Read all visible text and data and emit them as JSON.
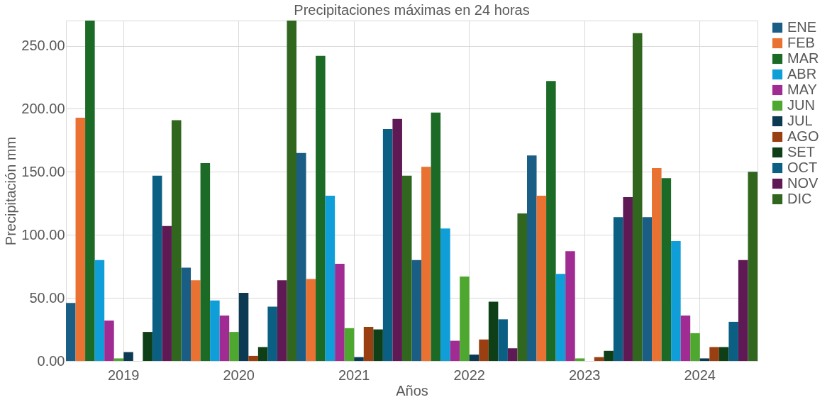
{
  "chart_data": {
    "type": "bar",
    "title": "Precipitaciones máximas  en 24 horas",
    "xlabel": "Años",
    "ylabel": "Precipitación mm",
    "categories": [
      "2019",
      "2020",
      "2021",
      "2022",
      "2023",
      "2024"
    ],
    "series": [
      {
        "name": "ENE",
        "color": "#1a5e85",
        "values": [
          46,
          74,
          165,
          80,
          163,
          114
        ]
      },
      {
        "name": "FEB",
        "color": "#e97132",
        "values": [
          193,
          64,
          65,
          154,
          131,
          153
        ]
      },
      {
        "name": "MAR",
        "color": "#1b6a25",
        "values": [
          270,
          157,
          242,
          197,
          222,
          145
        ]
      },
      {
        "name": "ABR",
        "color": "#109ed8",
        "values": [
          80,
          48,
          131,
          105,
          69,
          95
        ]
      },
      {
        "name": "MAY",
        "color": "#a02b93",
        "values": [
          32,
          36,
          77,
          16,
          87,
          36
        ]
      },
      {
        "name": "JUN",
        "color": "#4ea72e",
        "values": [
          2,
          23,
          26,
          67,
          2,
          22
        ]
      },
      {
        "name": "JUL",
        "color": "#0c3a52",
        "values": [
          7,
          54,
          3,
          5,
          0,
          2
        ]
      },
      {
        "name": "AGO",
        "color": "#9a3f12",
        "values": [
          0,
          4,
          27,
          17,
          3,
          11
        ]
      },
      {
        "name": "SET",
        "color": "#0f3f16",
        "values": [
          23,
          11,
          25,
          47,
          8,
          11
        ]
      },
      {
        "name": "OCT",
        "color": "#0b5f83",
        "values": [
          147,
          43,
          184,
          33,
          114,
          31
        ]
      },
      {
        "name": "NOV",
        "color": "#5f1a55",
        "values": [
          107,
          64,
          192,
          10,
          130,
          80
        ]
      },
      {
        "name": "DIC",
        "color": "#31661f",
        "values": [
          191,
          270,
          147,
          117,
          260,
          150
        ]
      }
    ],
    "ylim": [
      0,
      270
    ],
    "yticks": [
      {
        "value": 0,
        "label": "0.00"
      },
      {
        "value": 50,
        "label": "50.00"
      },
      {
        "value": 100,
        "label": "100.00"
      },
      {
        "value": 150,
        "label": "150.00"
      },
      {
        "value": 200,
        "label": "200.00"
      },
      {
        "value": 250,
        "label": "250.00"
      }
    ],
    "grid": true,
    "legend": "right"
  }
}
